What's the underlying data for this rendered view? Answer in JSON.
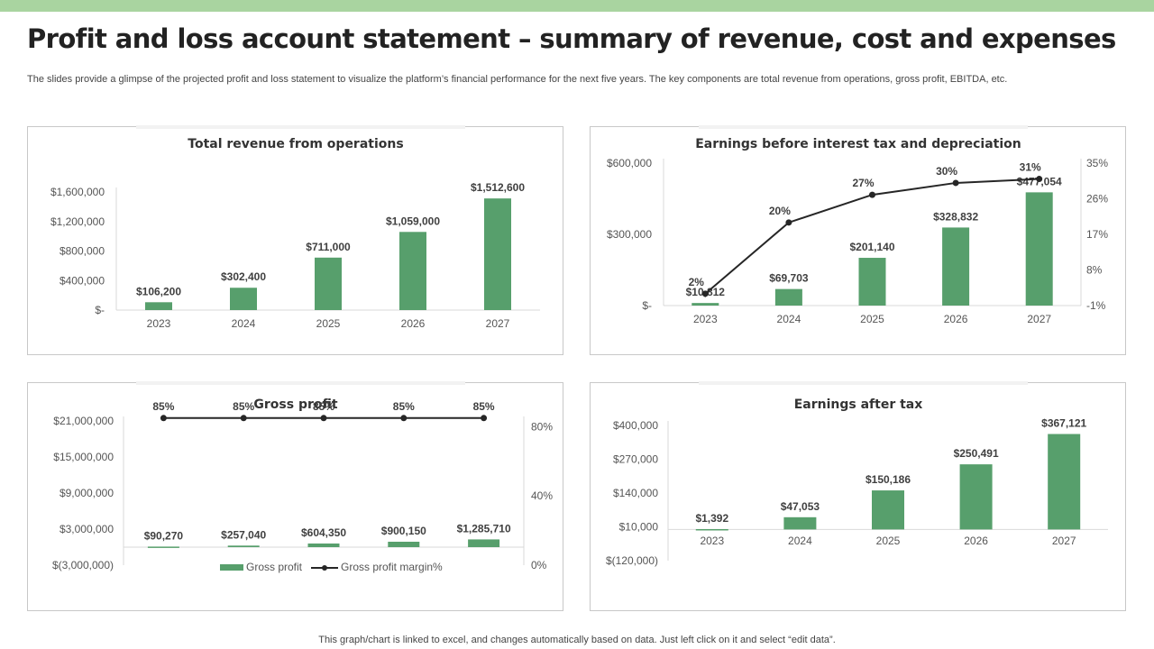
{
  "page": {
    "title": "Profit and loss account statement – summary of revenue, cost and expenses",
    "subtitle": "The slides provide a glimpse of the projected profit and loss statement to visualize the platform’s financial performance for the next five years. The key components are total revenue from operations, gross profit, EBITDA,  etc.",
    "footer": "This graph/chart is linked to excel,  and changes automatically based on data. Just left click on it and select “edit data”."
  },
  "colors": {
    "bar": "#579f6c",
    "line": "#262626",
    "topbar": "#a9d4a0",
    "axis": "#d9d9d9"
  },
  "chart_data": [
    {
      "id": "revenue",
      "type": "bar",
      "title": "Total revenue from operations",
      "categories": [
        "2023",
        "2024",
        "2025",
        "2026",
        "2027"
      ],
      "series": [
        {
          "values": [
            106200,
            302400,
            711000,
            1059000,
            1512600
          ]
        }
      ],
      "data_labels": [
        "$106,200",
        "$302,400",
        "$711,000",
        "$1,059,000",
        "$1,512,600"
      ],
      "ylim": [
        0,
        1600000
      ],
      "yticks": [
        0,
        400000,
        800000,
        1200000,
        1600000
      ],
      "ytick_labels": [
        "$-",
        "$400,000",
        "$800,000",
        "$1,200,000",
        "$1,600,000"
      ],
      "grid": false
    },
    {
      "id": "ebitda",
      "type": "bar",
      "title": "Earnings before interest tax and depreciation",
      "categories": [
        "2023",
        "2024",
        "2025",
        "2026",
        "2027"
      ],
      "series": [
        {
          "values": [
            10812,
            69703,
            201140,
            328832,
            477054
          ],
          "axis": "left"
        },
        {
          "values": [
            2,
            20,
            27,
            30,
            31
          ],
          "axis": "right",
          "type": "line"
        }
      ],
      "data_labels": [
        "$10,812",
        "$69,703",
        "$201,140",
        "$328,832",
        "$477,054"
      ],
      "line_labels": [
        "2%",
        "20%",
        "27%",
        "30%",
        "31%"
      ],
      "ylim": [
        0,
        600000
      ],
      "yticks": [
        0,
        300000,
        600000
      ],
      "ytick_labels": [
        "$-",
        "$300,000",
        "$600,000"
      ],
      "y2lim": [
        -1,
        35
      ],
      "y2ticks": [
        -1,
        8,
        17,
        26,
        35
      ],
      "y2tick_labels": [
        "-1%",
        "8%",
        "17%",
        "26%",
        "35%"
      ],
      "grid": false
    },
    {
      "id": "gross",
      "type": "bar",
      "title": "Gross profit",
      "categories": [
        "2023",
        "2024",
        "2025",
        "2026",
        "2027"
      ],
      "series": [
        {
          "name": "Gross profit",
          "values": [
            90270,
            257040,
            604350,
            900150,
            1285710
          ],
          "axis": "left"
        },
        {
          "name": "Gross profit margin%",
          "values": [
            85,
            85,
            85,
            85,
            85
          ],
          "axis": "right",
          "type": "line"
        }
      ],
      "data_labels": [
        "$90,270",
        "$257,040",
        "$604,350",
        "$900,150",
        "$1,285,710"
      ],
      "line_labels": [
        "85%",
        "85%",
        "85%",
        "85%",
        "85%"
      ],
      "ylim": [
        -3000000,
        21000000
      ],
      "yticks": [
        -3000000,
        3000000,
        9000000,
        15000000,
        21000000
      ],
      "ytick_labels": [
        "$(3,000,000)",
        "$3,000,000",
        "$9,000,000",
        "$15,000,000",
        "$21,000,000"
      ],
      "y2lim": [
        0,
        100
      ],
      "y2ticks": [
        0,
        40,
        80
      ],
      "y2tick_labels": [
        "0%",
        "40%",
        "80%"
      ],
      "legend": "bottom",
      "grid": false
    },
    {
      "id": "eat",
      "type": "bar",
      "title": "Earnings after tax",
      "categories": [
        "2023",
        "2024",
        "2025",
        "2026",
        "2027"
      ],
      "series": [
        {
          "values": [
            1392,
            47053,
            150186,
            250491,
            367121
          ]
        }
      ],
      "data_labels": [
        "$1,392",
        "$47,053",
        "$150,186",
        "$250,491",
        "$367,121"
      ],
      "ylim": [
        -120000,
        400000
      ],
      "yticks": [
        -120000,
        10000,
        140000,
        270000,
        400000
      ],
      "ytick_labels": [
        "$(120,000)",
        "$10,000",
        "$140,000",
        "$270,000",
        "$400,000"
      ],
      "grid": false
    }
  ]
}
